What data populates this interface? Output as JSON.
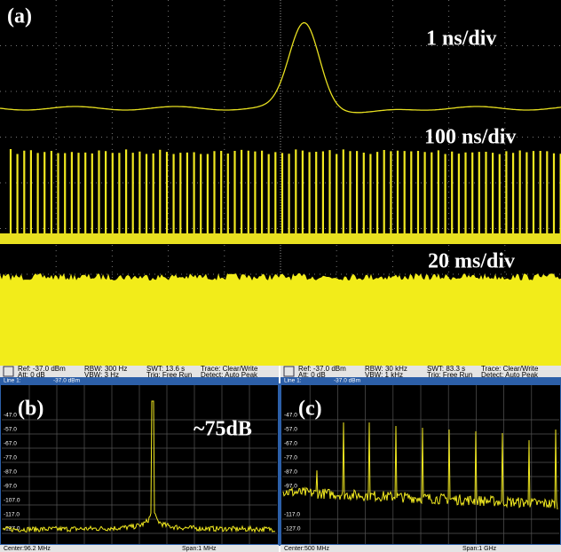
{
  "panel_a": {
    "label": "(a)",
    "traces": [
      {
        "label": "1 ns/div"
      },
      {
        "label": "100 ns/div"
      },
      {
        "label": "20 ms/div"
      }
    ]
  },
  "panel_b": {
    "label": "(b)",
    "header": {
      "ref": "Ref: -37.0 dBm",
      "att": "Att: 0 dB",
      "rbw": "RBW:  300 Hz",
      "vbw": "VBW:  3 Hz",
      "swt": "SWT:  13.6 s",
      "trig": "Trig:  Free Run",
      "trace": "Trace:  Clear/Write",
      "detect": "Detect:  Auto Peak"
    },
    "line": "Line 1:",
    "line_value": "-37.0  dBm",
    "yticks": [
      "-47.0",
      "-57.0",
      "-67.0",
      "-77.0",
      "-87.0",
      "-97.0",
      "-107.0",
      "-117.0",
      "-127.0"
    ],
    "annotation": "~75dB",
    "center": "Center:96.2 MHz",
    "span": "Span:1 MHz"
  },
  "panel_c": {
    "label": "(c)",
    "header": {
      "ref": "Ref: -37.0 dBm",
      "att": "Att: 0 dB",
      "rbw": "RBW:  30 kHz",
      "vbw": "VBW:  1 kHz",
      "swt": "SWT:  83.3 s",
      "trig": "Trig:  Free Run",
      "trace": "Trace:  Clear/Write",
      "detect": "Detect:  Auto Peak"
    },
    "line": "Line 1:",
    "line_value": "-37.0  dBm",
    "yticks": [
      "-47.0",
      "-57.0",
      "-67.0",
      "-77.0",
      "-87.0",
      "-97.0",
      "-117.0",
      "-127.0"
    ],
    "center": "Center:500 MHz",
    "span": "Span:1 GHz"
  }
}
